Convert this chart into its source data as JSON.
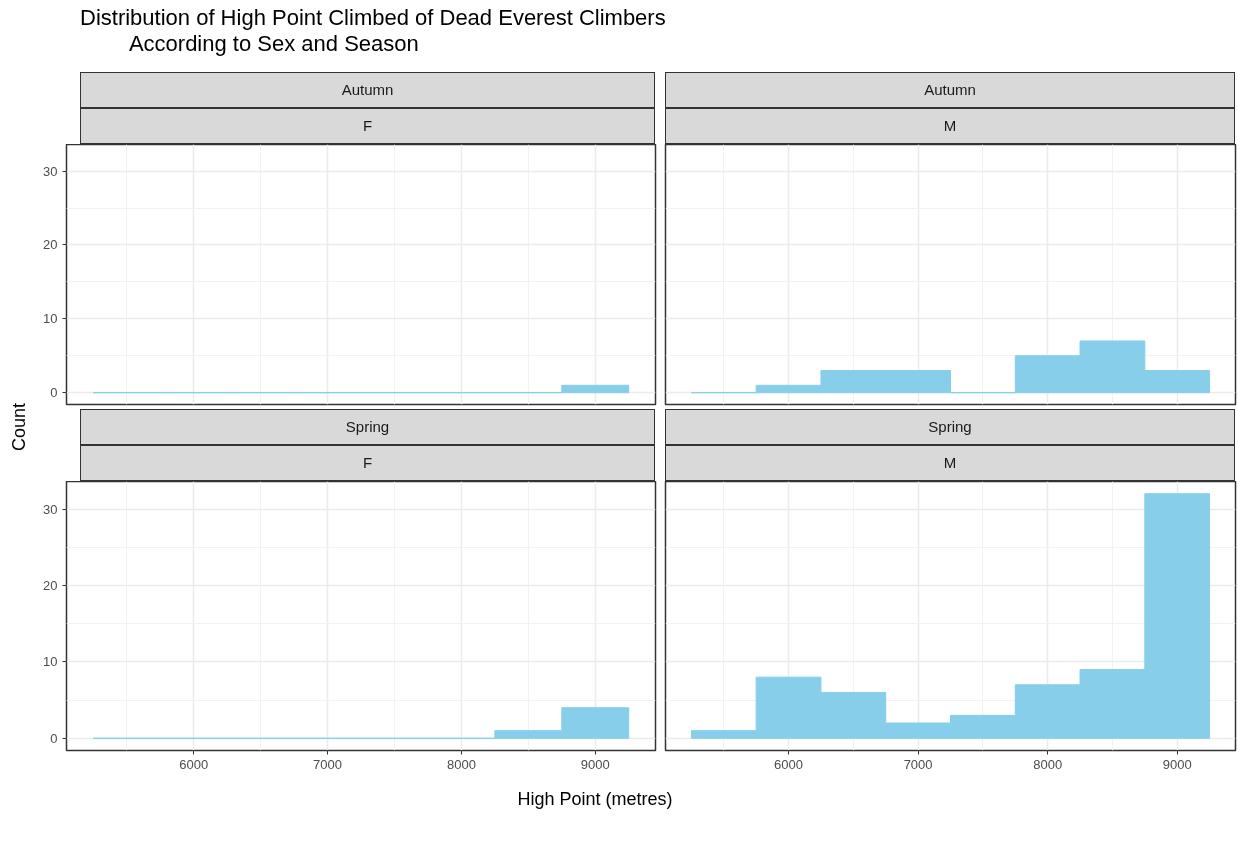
{
  "chart_data": [
    {
      "type": "histogram",
      "title": "Autumn",
      "subtitle": "F",
      "annotations": [
        "Distribution of High Point Climbed of Dead Everest Climbers\n        According to Sex and Season"
      ],
      "ylabel": "Count",
      "bins": [
        5250,
        5750,
        6250,
        6750,
        7250,
        7750,
        8250,
        8750,
        9250
      ],
      "values": [
        0,
        0,
        0,
        0,
        0,
        0,
        0,
        1
      ],
      "color": "#87ceeb",
      "xlim": [
        5050,
        9450
      ],
      "ylim": [
        -1.6,
        33.6
      ],
      "xticks": [
        6000,
        7000,
        8000,
        9000
      ],
      "yticks": [
        0,
        10,
        20,
        30
      ],
      "grid": true,
      "tick_labels": "y"
    },
    {
      "type": "histogram",
      "title": "Autumn",
      "subtitle": "M",
      "bins": [
        5250,
        5750,
        6250,
        6750,
        7250,
        7750,
        8250,
        8750,
        9250
      ],
      "values": [
        0,
        1,
        3,
        3,
        0,
        5,
        7,
        3
      ],
      "color": "#87ceeb",
      "xlim": [
        5050,
        9450
      ],
      "ylim": [
        -1.6,
        33.6
      ],
      "xticks": [
        6000,
        7000,
        8000,
        9000
      ],
      "yticks": [
        0,
        10,
        20,
        30
      ],
      "grid": true,
      "tick_labels": false
    },
    {
      "type": "histogram",
      "title": "Spring",
      "subtitle": "F",
      "xlabel": "High Point (metres)",
      "bins": [
        5250,
        5750,
        6250,
        6750,
        7250,
        7750,
        8250,
        8750,
        9250
      ],
      "values": [
        0,
        0,
        0,
        0,
        0,
        0,
        1,
        4
      ],
      "color": "#87ceeb",
      "xlim": [
        5050,
        9450
      ],
      "ylim": [
        -1.6,
        33.6
      ],
      "xticks": [
        6000,
        7000,
        8000,
        9000
      ],
      "yticks": [
        0,
        10,
        20,
        30
      ],
      "grid": true
    },
    {
      "type": "histogram",
      "title": "Spring",
      "subtitle": "M",
      "bins": [
        5250,
        5750,
        6250,
        6750,
        7250,
        7750,
        8250,
        8750,
        9250
      ],
      "values": [
        1,
        8,
        6,
        2,
        3,
        7,
        9,
        32
      ],
      "color": "#87ceeb",
      "xlim": [
        5050,
        9450
      ],
      "ylim": [
        -1.6,
        33.6
      ],
      "xticks": [
        6000,
        7000,
        8000,
        9000
      ],
      "yticks": [
        0,
        10,
        20,
        30
      ],
      "grid": true,
      "tick_labels": "x"
    }
  ]
}
